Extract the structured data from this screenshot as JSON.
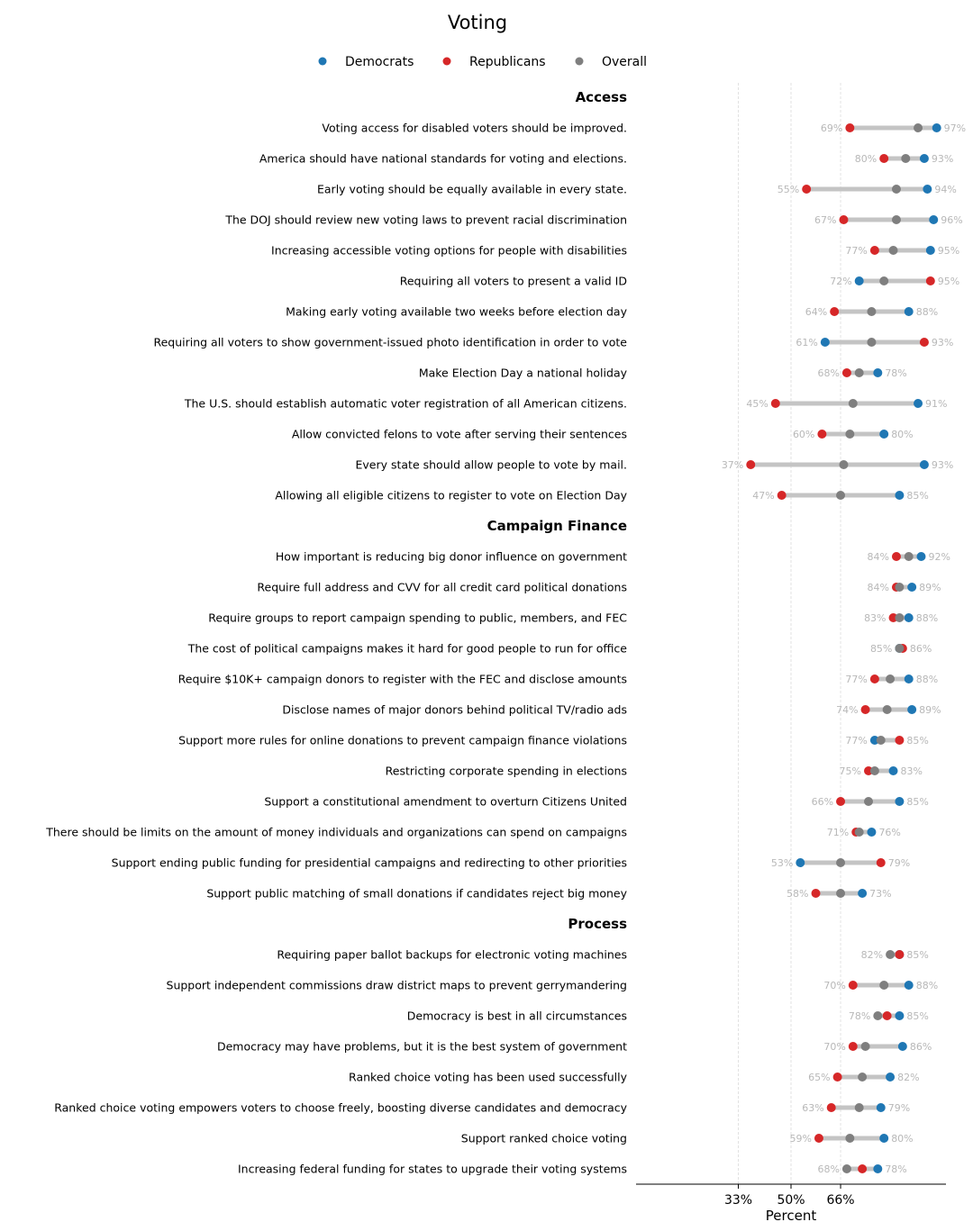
{
  "chart_data": {
    "type": "dumbbell",
    "title": "Voting",
    "xlabel": "Percent",
    "ylabel": "",
    "xlim": [
      0,
      100
    ],
    "xticks": [
      33,
      50,
      66
    ],
    "xtick_labels": [
      "33%",
      "50%",
      "66%"
    ],
    "grid": "vertical dashed at ticks",
    "legend": {
      "placement": "top-center",
      "entries": [
        {
          "name": "Democrats",
          "color": "#1f77b4"
        },
        {
          "name": "Republicans",
          "color": "#d62728"
        },
        {
          "name": "Overall",
          "color": "#7f7f7f"
        }
      ]
    },
    "colors": {
      "democrats": "#1f77b4",
      "republicans": "#d62728",
      "overall": "#7f7f7f",
      "range_line": "#c4c4c4",
      "value_label": "#b8b8b8"
    },
    "sections": [
      {
        "name": "Access",
        "items": [
          {
            "label": "Voting access for disabled voters should be improved.",
            "democrats": 97,
            "republicans": 69,
            "overall": 91
          },
          {
            "label": "America should have national standards for voting and elections.",
            "democrats": 93,
            "republicans": 80,
            "overall": 87
          },
          {
            "label": "Early voting should be equally available in every state.",
            "democrats": 94,
            "republicans": 55,
            "overall": 84
          },
          {
            "label": "The DOJ should review new voting laws to prevent racial discrimination",
            "democrats": 96,
            "republicans": 67,
            "overall": 84
          },
          {
            "label": "Increasing accessible voting options for people with disabilities",
            "democrats": 95,
            "republicans": 77,
            "overall": 83
          },
          {
            "label": "Requiring all voters to present a valid ID",
            "democrats": 72,
            "republicans": 95,
            "overall": 80
          },
          {
            "label": "Making early voting available two weeks before election day",
            "democrats": 88,
            "republicans": 64,
            "overall": 76
          },
          {
            "label": "Requiring all voters to show government-issued photo identification in order to vote",
            "democrats": 61,
            "republicans": 93,
            "overall": 76
          },
          {
            "label": "Make Election Day a national holiday",
            "democrats": 78,
            "republicans": 68,
            "overall": 72
          },
          {
            "label": "The U.S. should establish automatic voter registration of all American citizens.",
            "democrats": 91,
            "republicans": 45,
            "overall": 70
          },
          {
            "label": "Allow convicted felons to vote after serving their sentences",
            "democrats": 80,
            "republicans": 60,
            "overall": 69
          },
          {
            "label": "Every state should allow people to vote by mail.",
            "democrats": 93,
            "republicans": 37,
            "overall": 67
          },
          {
            "label": "Allowing all eligible citizens to register to vote on Election Day",
            "democrats": 85,
            "republicans": 47,
            "overall": 66
          }
        ]
      },
      {
        "name": "Campaign Finance",
        "items": [
          {
            "label": "How important is reducing big donor influence on government",
            "democrats": 92,
            "republicans": 84,
            "overall": 88
          },
          {
            "label": "Require full address and CVV for all credit card political donations",
            "democrats": 89,
            "republicans": 84,
            "overall": 85
          },
          {
            "label": "Require groups to report campaign spending to public, members, and FEC",
            "democrats": 88,
            "republicans": 83,
            "overall": 85
          },
          {
            "label": "The cost of political campaigns makes it hard for good people to run for office",
            "democrats": 85,
            "republicans": 86,
            "overall": 85
          },
          {
            "label": "Require $10K+ campaign donors to register with the FEC and disclose amounts",
            "democrats": 88,
            "republicans": 77,
            "overall": 82
          },
          {
            "label": "Disclose names of major donors behind political TV/radio ads",
            "democrats": 89,
            "republicans": 74,
            "overall": 81
          },
          {
            "label": "Support more rules for online donations to prevent campaign finance violations",
            "democrats": 77,
            "republicans": 85,
            "overall": 79
          },
          {
            "label": "Restricting corporate spending in elections",
            "democrats": 83,
            "republicans": 75,
            "overall": 77
          },
          {
            "label": "Support a constitutional amendment to overturn Citizens United",
            "democrats": 85,
            "republicans": 66,
            "overall": 75
          },
          {
            "label": "There should be limits on the amount of money individuals and organizations can spend on campaigns",
            "democrats": 76,
            "republicans": 71,
            "overall": 72
          },
          {
            "label": "Support ending public funding for presidential campaigns and redirecting to other priorities",
            "democrats": 53,
            "republicans": 79,
            "overall": 66
          },
          {
            "label": "Support public matching of small donations if candidates reject big money",
            "democrats": 73,
            "republicans": 58,
            "overall": 66
          }
        ]
      },
      {
        "name": "Process",
        "items": [
          {
            "label": "Requiring paper ballot backups for electronic voting machines",
            "democrats": 85,
            "republicans": 85,
            "overall": 82
          },
          {
            "label": "Support independent commissions draw district maps to prevent gerrymandering",
            "democrats": 88,
            "republicans": 70,
            "overall": 80
          },
          {
            "label": "Democracy is best in all circumstances",
            "democrats": 85,
            "republicans": 81,
            "overall": 78
          },
          {
            "label": "Democracy may have problems, but it is the best system of government",
            "democrats": 86,
            "republicans": 70,
            "overall": 74
          },
          {
            "label": "Ranked choice voting has been used successfully",
            "democrats": 82,
            "republicans": 65,
            "overall": 73
          },
          {
            "label": "Ranked choice voting empowers voters to choose freely, boosting diverse candidates and democracy",
            "democrats": 79,
            "republicans": 63,
            "overall": 72
          },
          {
            "label": "Support ranked choice voting",
            "democrats": 80,
            "republicans": 59,
            "overall": 69
          },
          {
            "label": "Increasing federal funding for states to upgrade their voting systems",
            "democrats": 78,
            "republicans": 73,
            "overall": 68
          }
        ]
      }
    ]
  }
}
